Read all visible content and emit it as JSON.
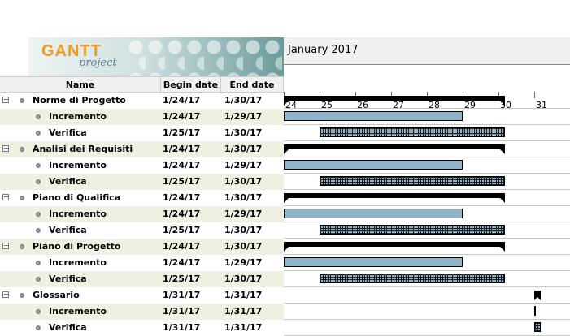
{
  "logo": {
    "brand": "GANTT",
    "sub": "project"
  },
  "timeline": {
    "month": "January 2017",
    "days": [
      "24",
      "25",
      "26",
      "27",
      "28",
      "29",
      "30",
      "31"
    ]
  },
  "columns": {
    "name": "Name",
    "begin": "Begin date",
    "end": "End date"
  },
  "colors": {
    "bar": "#8fb3c9",
    "summary": "#000000",
    "alt_row": "#efefe2"
  },
  "rows": [
    {
      "type": "group",
      "name": "Norme di Progetto",
      "begin": "1/24/17",
      "end": "1/30/17"
    },
    {
      "type": "task",
      "name": "Incremento",
      "begin": "1/24/17",
      "end": "1/29/17",
      "style": "solid"
    },
    {
      "type": "task",
      "name": "Verifica",
      "begin": "1/25/17",
      "end": "1/30/17",
      "style": "hatch"
    },
    {
      "type": "group",
      "name": "Analisi dei Requisiti",
      "begin": "1/24/17",
      "end": "1/30/17"
    },
    {
      "type": "task",
      "name": "Incremento",
      "begin": "1/24/17",
      "end": "1/29/17",
      "style": "solid"
    },
    {
      "type": "task",
      "name": "Verifica",
      "begin": "1/25/17",
      "end": "1/30/17",
      "style": "hatch"
    },
    {
      "type": "group",
      "name": "Piano di Qualifica",
      "begin": "1/24/17",
      "end": "1/30/17"
    },
    {
      "type": "task",
      "name": "Incremento",
      "begin": "1/24/17",
      "end": "1/29/17",
      "style": "solid"
    },
    {
      "type": "task",
      "name": "Verifica",
      "begin": "1/25/17",
      "end": "1/30/17",
      "style": "hatch"
    },
    {
      "type": "group",
      "name": "Piano di Progetto",
      "begin": "1/24/17",
      "end": "1/30/17"
    },
    {
      "type": "task",
      "name": "Incremento",
      "begin": "1/24/17",
      "end": "1/29/17",
      "style": "solid"
    },
    {
      "type": "task",
      "name": "Verifica",
      "begin": "1/25/17",
      "end": "1/30/17",
      "style": "hatch"
    },
    {
      "type": "group",
      "name": "Glossario",
      "begin": "1/31/17",
      "end": "1/31/17"
    },
    {
      "type": "task",
      "name": "Incremento",
      "begin": "1/31/17",
      "end": "1/31/17",
      "style": "solid"
    },
    {
      "type": "task",
      "name": "Verifica",
      "begin": "1/31/17",
      "end": "1/31/17",
      "style": "hatch"
    }
  ]
}
